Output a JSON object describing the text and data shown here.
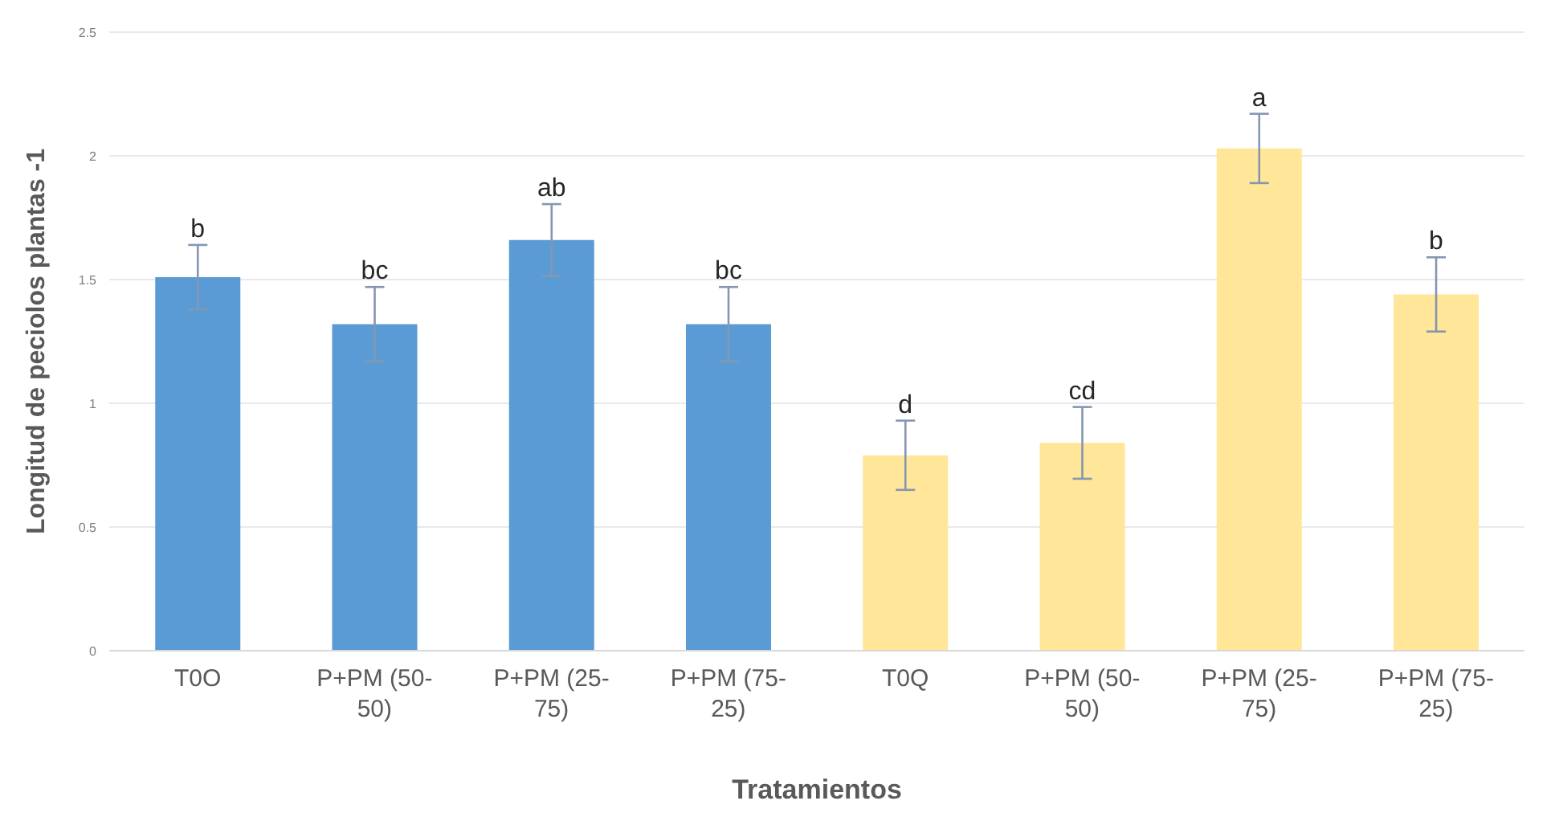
{
  "chart_data": {
    "type": "bar",
    "xlabel": "Tratamientos",
    "ylabel": "Longitud de peciolos plantas -1",
    "categories": [
      "T0O",
      "P+PM (50-50)",
      "P+PM (25-75)",
      "P+PM (75-25)",
      "T0Q",
      "P+PM (50-50)",
      "P+PM (25-75)",
      "P+PM (75-25)"
    ],
    "values": [
      1.51,
      1.32,
      1.66,
      1.32,
      0.79,
      0.84,
      2.03,
      1.44
    ],
    "errors": [
      0.13,
      0.15,
      0.145,
      0.15,
      0.14,
      0.145,
      0.14,
      0.15
    ],
    "value_labels": [
      "b",
      "bc",
      "ab",
      "bc",
      "d",
      "cd",
      "a",
      "b"
    ],
    "colors": [
      "#5b9bd5",
      "#5b9bd5",
      "#5b9bd5",
      "#5b9bd5",
      "#ffe699",
      "#ffe699",
      "#ffe699",
      "#ffe699"
    ],
    "ylim": [
      0,
      2.5
    ],
    "yticks": [
      0,
      0.5,
      1,
      1.5,
      2,
      2.5
    ],
    "grid": "y"
  }
}
